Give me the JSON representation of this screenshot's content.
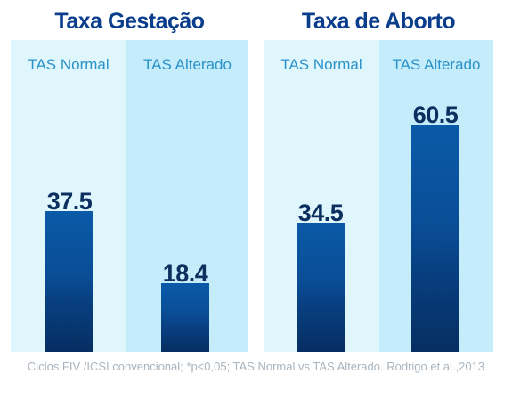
{
  "chart_data": [
    {
      "type": "bar",
      "title": "Taxa Gestação",
      "categories": [
        "TAS Normal",
        "TAS Alterado"
      ],
      "values": [
        37.5,
        18.4
      ],
      "value_labels": [
        "37.5",
        "18.4"
      ],
      "ylim": [
        0,
        70
      ],
      "grid": false
    },
    {
      "type": "bar",
      "title": "Taxa de Aborto",
      "categories": [
        "TAS Normal",
        "TAS Alterado"
      ],
      "values": [
        34.5,
        60.5
      ],
      "value_labels": [
        "34.5",
        "60.5"
      ],
      "ylim": [
        0,
        70
      ],
      "grid": false
    }
  ],
  "footnote": "Ciclos FIV /ICSI convencional; *p<0,05; TAS Normal vs TAS Alterado. Rodrigo et al.,2013",
  "colors": {
    "title": "#0a3d8c",
    "column_light": "#e0f6fd",
    "column_dark": "#c4ecfb",
    "bar": "#0a4d96",
    "category_label": "#2a92c8",
    "value_label": "#0b2f5e",
    "footnote": "#a9b4be"
  }
}
